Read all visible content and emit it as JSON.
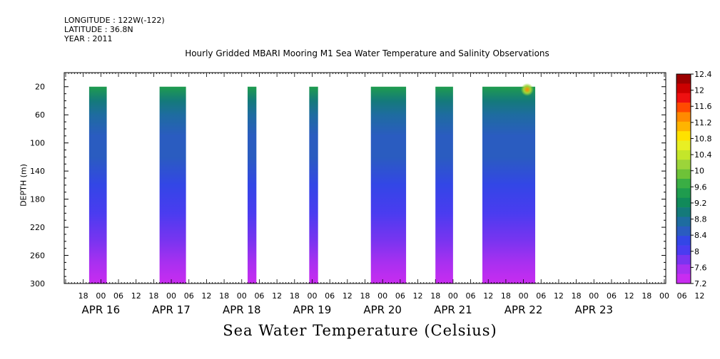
{
  "meta": {
    "longitude": "LONGITUDE : 122W(-122)",
    "latitude": "LATITUDE : 36.8N",
    "year": "YEAR : 2011"
  },
  "chart_data": {
    "type": "heatmap",
    "title": "Hourly Gridded MBARI Mooring M1 Sea Water Temperature and Salinity Observations",
    "xlabel": "Sea Water Temperature (Celsius)",
    "ylabel": "DEPTH (m)",
    "x_start": "APR 15 12:00",
    "xlim_hours": [
      0,
      204
    ],
    "hour_ticks": [
      "18",
      "00",
      "06",
      "12",
      "18",
      "00",
      "06",
      "12",
      "18",
      "00",
      "06",
      "12",
      "18",
      "00",
      "06",
      "12",
      "18",
      "00",
      "06",
      "12",
      "18",
      "00",
      "06",
      "12",
      "18",
      "00",
      "06",
      "12",
      "18",
      "00",
      "06",
      "12",
      "18",
      "00",
      "06",
      "12"
    ],
    "date_labels": [
      {
        "label": "APR 16",
        "hour": 12
      },
      {
        "label": "APR 17",
        "hour": 36
      },
      {
        "label": "APR 18",
        "hour": 60
      },
      {
        "label": "APR 19",
        "hour": 84
      },
      {
        "label": "APR 20",
        "hour": 108
      },
      {
        "label": "APR 21",
        "hour": 132
      },
      {
        "label": "APR 22",
        "hour": 156
      },
      {
        "label": "APR 23",
        "hour": 180
      }
    ],
    "ylim": [
      0,
      300
    ],
    "y_reversed": true,
    "y_ticks": [
      20,
      60,
      100,
      140,
      180,
      220,
      260,
      300
    ],
    "data_depth_range": [
      20,
      300
    ],
    "blocks_hours": [
      [
        8,
        14
      ],
      [
        32,
        41
      ],
      [
        62,
        65
      ],
      [
        83,
        86
      ],
      [
        104,
        116
      ],
      [
        126,
        132
      ],
      [
        142,
        160
      ]
    ],
    "profile": [
      {
        "depth": 20,
        "temp": 9.4
      },
      {
        "depth": 40,
        "temp": 9.0
      },
      {
        "depth": 60,
        "temp": 8.8
      },
      {
        "depth": 90,
        "temp": 8.6
      },
      {
        "depth": 120,
        "temp": 8.4
      },
      {
        "depth": 160,
        "temp": 8.2
      },
      {
        "depth": 200,
        "temp": 8.0
      },
      {
        "depth": 240,
        "temp": 7.8
      },
      {
        "depth": 270,
        "temp": 7.6
      },
      {
        "depth": 300,
        "temp": 7.3
      }
    ],
    "warm_spot": {
      "hour": 158,
      "depth": 20,
      "temp": 11.4
    },
    "colorbar": {
      "labels": [
        "12.4",
        "12",
        "11.6",
        "11.2",
        "10.8",
        "10.4",
        "10",
        "9.6",
        "9.2",
        "8.8",
        "8.4",
        "8",
        "7.6",
        "7.2"
      ],
      "colors": [
        "#9c0000",
        "#cc0000",
        "#ee1010",
        "#ff4a00",
        "#ff8a00",
        "#ffb400",
        "#ffe100",
        "#e8ef24",
        "#c4e62a",
        "#9cd43a",
        "#6ec238",
        "#3aae44",
        "#1f9c4e",
        "#118a5a",
        "#147a7a",
        "#1e6ca0",
        "#2a5cc0",
        "#3346e6",
        "#4a3cf0",
        "#7a34f0",
        "#a830f0",
        "#c82cf0"
      ]
    }
  }
}
